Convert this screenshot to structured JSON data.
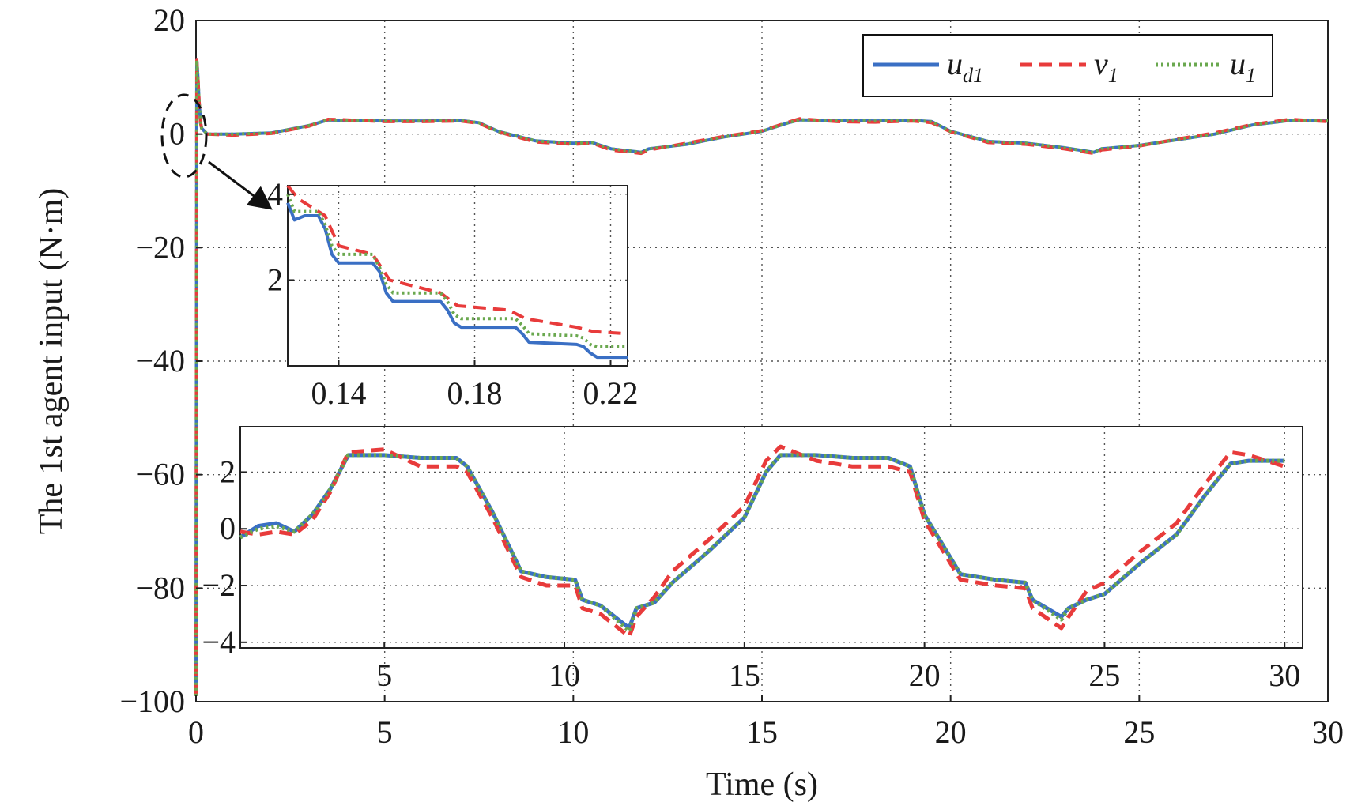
{
  "chart_data": [
    {
      "id": "main",
      "type": "line",
      "title": "",
      "xlabel": "Time (s)",
      "ylabel": "The 1st agent input (N·m)",
      "xlim": [
        0,
        30
      ],
      "ylim": [
        -100,
        20
      ],
      "xticks": [
        0,
        5,
        10,
        15,
        20,
        25,
        30
      ],
      "yticks": [
        -100,
        -80,
        -60,
        -40,
        -20,
        0,
        20
      ],
      "xtick_labels": [
        "0",
        "5",
        "10",
        "15",
        "20",
        "25",
        "30"
      ],
      "ytick_labels": [
        "−100",
        "−80",
        "−60",
        "−40",
        "−20",
        "0",
        "20"
      ],
      "grid": true,
      "legend_position": "top-right",
      "series": [
        {
          "name": "u_d1",
          "legend_main": "u",
          "legend_sub": "d1",
          "color": "#3a6fc4",
          "style": "solid",
          "x": [
            0,
            0.02,
            0.05,
            0.08,
            0.1,
            0.12,
            0.15,
            0.3,
            1,
            2,
            3,
            3.5,
            4,
            5,
            6,
            7,
            7.5,
            8,
            9,
            10,
            10.5,
            11,
            11.8,
            12,
            13,
            14,
            15,
            15.7,
            16,
            17,
            18,
            19,
            19.5,
            20,
            21,
            22,
            23,
            23.8,
            24,
            25,
            26,
            27,
            28,
            29,
            30
          ],
          "y": [
            -99,
            13,
            10,
            6,
            4,
            2,
            1,
            0,
            0,
            0.2,
            1.5,
            2.5,
            2.4,
            2.3,
            2.3,
            2.4,
            2,
            0.5,
            -1.2,
            -1.6,
            -1.5,
            -2.6,
            -3.2,
            -2.6,
            -1.8,
            -0.5,
            0.5,
            2,
            2.5,
            2.4,
            2.3,
            2.4,
            2.2,
            0.5,
            -1.3,
            -1.6,
            -2.4,
            -3.2,
            -2.6,
            -2,
            -1,
            0,
            1.6,
            2.4,
            2.3
          ]
        },
        {
          "name": "v_1",
          "legend_main": "v",
          "legend_sub": "1",
          "color": "#e83b3b",
          "style": "dashed",
          "x": [
            0,
            0.02,
            0.05,
            0.08,
            0.1,
            0.12,
            0.15,
            0.3,
            1,
            2,
            3,
            3.5,
            4,
            5,
            6,
            7,
            7.5,
            8,
            9,
            10,
            10.5,
            11,
            11.8,
            12,
            13,
            14,
            15,
            15.7,
            16,
            17,
            18,
            19,
            19.5,
            20,
            21,
            22,
            23,
            23.8,
            24,
            25,
            26,
            27,
            28,
            29,
            30
          ],
          "y": [
            -99,
            13,
            10,
            6,
            4,
            2,
            1,
            0,
            -0.2,
            0.1,
            1.4,
            2.6,
            2.5,
            2.2,
            2.2,
            2.3,
            1.9,
            0.4,
            -1.4,
            -1.8,
            -1.6,
            -2.8,
            -3.4,
            -2.8,
            -1.6,
            -0.4,
            0.6,
            2.1,
            2.7,
            2.2,
            2.1,
            2.3,
            2.0,
            0.4,
            -1.5,
            -1.8,
            -2.6,
            -3.4,
            -2.8,
            -2.1,
            -0.9,
            0.2,
            1.7,
            2.6,
            2.2
          ]
        },
        {
          "name": "u_1",
          "legend_main": "u",
          "legend_sub": "1",
          "color": "#6aa84f",
          "style": "dotted",
          "x": [
            0,
            0.02,
            0.05,
            0.08,
            0.1,
            0.12,
            0.15,
            0.3,
            1,
            2,
            3,
            3.5,
            4,
            5,
            6,
            7,
            7.5,
            8,
            9,
            10,
            10.5,
            11,
            11.8,
            12,
            13,
            14,
            15,
            15.7,
            16,
            17,
            18,
            19,
            19.5,
            20,
            21,
            22,
            23,
            23.8,
            24,
            25,
            26,
            27,
            28,
            29,
            30
          ],
          "y": [
            -99,
            13,
            10,
            6,
            4,
            2,
            1,
            0,
            0,
            0.2,
            1.5,
            2.5,
            2.4,
            2.3,
            2.3,
            2.4,
            2,
            0.5,
            -1.2,
            -1.6,
            -1.5,
            -2.6,
            -3.2,
            -2.6,
            -1.8,
            -0.5,
            0.5,
            2,
            2.5,
            2.4,
            2.3,
            2.4,
            2.2,
            0.5,
            -1.3,
            -1.6,
            -2.4,
            -3.2,
            -2.6,
            -2,
            -1,
            0,
            1.6,
            2.4,
            2.3
          ]
        }
      ]
    },
    {
      "id": "inset_zoom_start",
      "type": "line",
      "title": "",
      "xlim": [
        0.125,
        0.225
      ],
      "ylim": [
        0,
        4.2
      ],
      "xticks": [
        0.14,
        0.18,
        0.22
      ],
      "yticks": [
        2,
        4
      ],
      "xtick_labels": [
        "0.14",
        "0.18",
        "0.22"
      ],
      "ytick_labels": [
        "2",
        "4"
      ],
      "grid": true,
      "series": [
        {
          "name": "u_d1",
          "color": "#3a6fc4",
          "style": "solid",
          "x": [
            0.125,
            0.127,
            0.13,
            0.134,
            0.136,
            0.138,
            0.14,
            0.15,
            0.152,
            0.154,
            0.156,
            0.17,
            0.172,
            0.174,
            0.176,
            0.192,
            0.194,
            0.196,
            0.21,
            0.212,
            0.214,
            0.216,
            0.225
          ],
          "y": [
            3.8,
            3.4,
            3.5,
            3.5,
            3.2,
            2.6,
            2.4,
            2.4,
            2.2,
            1.7,
            1.5,
            1.5,
            1.3,
            1.0,
            0.9,
            0.9,
            0.75,
            0.55,
            0.5,
            0.45,
            0.3,
            0.2,
            0.2
          ]
        },
        {
          "name": "v_1",
          "color": "#e83b3b",
          "style": "dashed",
          "x": [
            0.125,
            0.128,
            0.132,
            0.136,
            0.14,
            0.15,
            0.155,
            0.17,
            0.175,
            0.19,
            0.195,
            0.21,
            0.215,
            0.225
          ],
          "y": [
            4.2,
            3.9,
            3.7,
            3.5,
            2.8,
            2.6,
            2.0,
            1.7,
            1.4,
            1.3,
            1.1,
            0.9,
            0.8,
            0.75
          ]
        },
        {
          "name": "u_1",
          "color": "#6aa84f",
          "style": "dotted",
          "x": [
            0.125,
            0.127,
            0.13,
            0.134,
            0.136,
            0.138,
            0.14,
            0.15,
            0.152,
            0.154,
            0.156,
            0.17,
            0.172,
            0.174,
            0.176,
            0.192,
            0.194,
            0.196,
            0.21,
            0.212,
            0.214,
            0.216,
            0.225
          ],
          "y": [
            4.0,
            3.6,
            3.6,
            3.6,
            3.3,
            2.8,
            2.6,
            2.6,
            2.3,
            1.9,
            1.7,
            1.7,
            1.5,
            1.2,
            1.1,
            1.1,
            0.95,
            0.75,
            0.7,
            0.65,
            0.5,
            0.45,
            0.45
          ]
        }
      ]
    },
    {
      "id": "inset_steady",
      "type": "line",
      "title": "",
      "xlim": [
        1,
        30.5
      ],
      "ylim": [
        -4.2,
        3.6
      ],
      "xticks": [
        5,
        10,
        15,
        20,
        25,
        30
      ],
      "yticks": [
        -4,
        -2,
        0,
        2
      ],
      "xtick_labels": [
        "5",
        "10",
        "15",
        "20",
        "25",
        "30"
      ],
      "ytick_labels": [
        "−4",
        "−2",
        "0",
        "2"
      ],
      "grid": true,
      "series": [
        {
          "name": "u_d1",
          "color": "#3a6fc4",
          "style": "solid",
          "x": [
            1,
            1.5,
            2,
            2.5,
            3,
            3.5,
            4,
            5,
            6,
            7,
            7.3,
            8,
            8.8,
            9.5,
            10.3,
            10.5,
            11,
            11.8,
            12,
            12.5,
            13,
            14,
            15,
            15.6,
            16,
            17,
            18,
            19,
            19.6,
            20,
            21,
            22,
            22.8,
            23,
            23.8,
            24,
            24.5,
            25,
            26,
            27,
            27.8,
            28.5,
            29,
            30
          ],
          "y": [
            -0.3,
            0.1,
            0.2,
            -0.1,
            0.5,
            1.4,
            2.6,
            2.6,
            2.5,
            2.5,
            2.2,
            0.6,
            -1.5,
            -1.7,
            -1.8,
            -2.5,
            -2.7,
            -3.5,
            -2.8,
            -2.6,
            -1.9,
            -0.8,
            0.4,
            2.0,
            2.6,
            2.6,
            2.5,
            2.5,
            2.2,
            0.5,
            -1.6,
            -1.8,
            -1.9,
            -2.5,
            -3.1,
            -2.8,
            -2.5,
            -2.3,
            -1.2,
            -0.2,
            1.2,
            2.3,
            2.4,
            2.4
          ]
        },
        {
          "name": "v_1",
          "color": "#e83b3b",
          "style": "dashed",
          "x": [
            1,
            1.5,
            2,
            2.5,
            3,
            3.5,
            4,
            5,
            6,
            7,
            7.3,
            8,
            8.8,
            9.5,
            10.3,
            10.5,
            11,
            11.8,
            12,
            12.5,
            13,
            14,
            15,
            15.6,
            16,
            17,
            18,
            19,
            19.6,
            20,
            21,
            22,
            22.8,
            23,
            23.8,
            24,
            24.5,
            25,
            26,
            27,
            27.8,
            28.5,
            29,
            30
          ],
          "y": [
            -0.1,
            -0.2,
            -0.1,
            -0.2,
            0.3,
            1.3,
            2.7,
            2.8,
            2.2,
            2.2,
            2.0,
            0.4,
            -1.7,
            -2.0,
            -2.0,
            -2.8,
            -3.0,
            -3.8,
            -3.1,
            -2.4,
            -1.5,
            -0.4,
            0.8,
            2.4,
            2.9,
            2.4,
            2.2,
            2.2,
            2.0,
            0.3,
            -1.8,
            -2.0,
            -2.1,
            -2.8,
            -3.5,
            -3.1,
            -2.2,
            -1.9,
            -0.8,
            0.2,
            1.6,
            2.7,
            2.6,
            2.2
          ]
        },
        {
          "name": "u_1",
          "color": "#6aa84f",
          "style": "dotted",
          "x": [
            1,
            1.5,
            2,
            2.5,
            3,
            3.5,
            4,
            5,
            6,
            7,
            7.3,
            8,
            8.8,
            9.5,
            10.3,
            10.5,
            11,
            11.8,
            12,
            12.5,
            13,
            14,
            15,
            15.6,
            16,
            17,
            18,
            19,
            19.6,
            20,
            21,
            22,
            22.8,
            23,
            23.8,
            24,
            24.5,
            25,
            26,
            27,
            27.8,
            28.5,
            29,
            30
          ],
          "y": [
            -0.3,
            0.0,
            0.1,
            -0.1,
            0.5,
            1.4,
            2.6,
            2.6,
            2.5,
            2.5,
            2.2,
            0.6,
            -1.5,
            -1.7,
            -1.8,
            -2.5,
            -2.7,
            -3.6,
            -2.8,
            -2.6,
            -1.9,
            -0.8,
            0.4,
            2.0,
            2.6,
            2.6,
            2.5,
            2.5,
            2.2,
            0.5,
            -1.6,
            -1.8,
            -1.9,
            -2.5,
            -3.2,
            -2.8,
            -2.5,
            -2.3,
            -1.2,
            -0.2,
            1.2,
            2.3,
            2.4,
            2.4
          ]
        }
      ]
    }
  ]
}
